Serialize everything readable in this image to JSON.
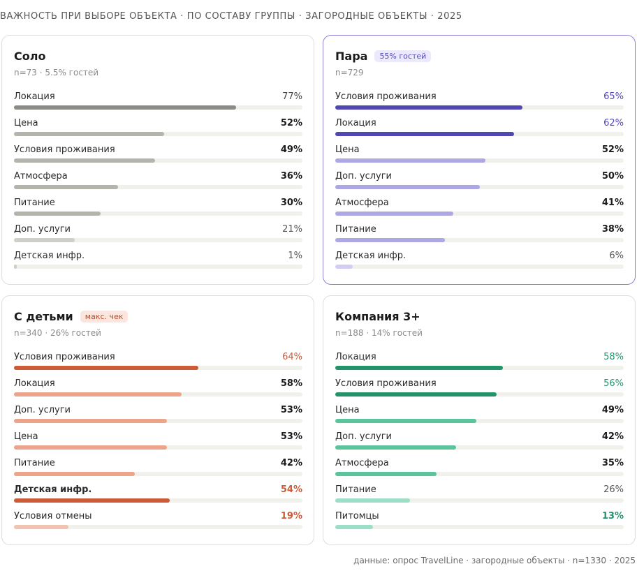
{
  "page_title": "ВАЖНОСТЬ ПРИ ВЫБОРЕ ОБЪЕКТА · ПО СОСТАВУ ГРУППЫ · ЗАГОРОДНЫЕ ОБЪЕКТЫ · 2025",
  "footer": "данные: опрос TravelLine · загородные объекты · n=1330 · 2025",
  "chart_data": [
    {
      "type": "bar",
      "title": "Соло",
      "badge": "",
      "subtitle": "n=73 · 5.5% гостей",
      "unit": "%",
      "xlim": [
        0,
        100
      ],
      "highlight": false,
      "rows": [
        {
          "label": "Локация",
          "value": 77,
          "fill_color": "#8b8b85",
          "value_color": "#444444",
          "value_bold": false,
          "label_bold": false
        },
        {
          "label": "Цена",
          "value": 52,
          "fill_color": "#b4b4ad",
          "value_color": "#1b1b1b",
          "value_bold": true,
          "label_bold": false
        },
        {
          "label": "Условия проживания",
          "value": 49,
          "fill_color": "#b4b4ad",
          "value_color": "#1b1b1b",
          "value_bold": true,
          "label_bold": false
        },
        {
          "label": "Атмосфера",
          "value": 36,
          "fill_color": "#b4b4ad",
          "value_color": "#1b1b1b",
          "value_bold": true,
          "label_bold": false
        },
        {
          "label": "Питание",
          "value": 30,
          "fill_color": "#b4b4ad",
          "value_color": "#1b1b1b",
          "value_bold": true,
          "label_bold": false
        },
        {
          "label": "Доп. услуги",
          "value": 21,
          "fill_color": "#cfcfc9",
          "value_color": "#555555",
          "value_bold": false,
          "label_bold": false
        },
        {
          "label": "Детская инфр.",
          "value": 1,
          "fill_color": "#cfcfc9",
          "value_color": "#555555",
          "value_bold": false,
          "label_bold": false
        }
      ]
    },
    {
      "type": "bar",
      "title": "Пара",
      "badge": "55% гостей",
      "badge_bg": "#ebe9fb",
      "badge_color": "#5650b8",
      "subtitle": "n=729",
      "unit": "%",
      "xlim": [
        0,
        100
      ],
      "highlight": true,
      "rows": [
        {
          "label": "Условия проживания",
          "value": 65,
          "fill_color": "#5147b3",
          "value_color": "#5147b3",
          "value_bold": false,
          "label_bold": false
        },
        {
          "label": "Локация",
          "value": 62,
          "fill_color": "#5147b3",
          "value_color": "#5147b3",
          "value_bold": false,
          "label_bold": false
        },
        {
          "label": "Цена",
          "value": 52,
          "fill_color": "#ada7e4",
          "value_color": "#1b1b1b",
          "value_bold": true,
          "label_bold": false
        },
        {
          "label": "Доп. услуги",
          "value": 50,
          "fill_color": "#ada7e4",
          "value_color": "#1b1b1b",
          "value_bold": true,
          "label_bold": false
        },
        {
          "label": "Атмосфера",
          "value": 41,
          "fill_color": "#ada7e4",
          "value_color": "#1b1b1b",
          "value_bold": true,
          "label_bold": false
        },
        {
          "label": "Питание",
          "value": 38,
          "fill_color": "#ada7e4",
          "value_color": "#1b1b1b",
          "value_bold": true,
          "label_bold": false
        },
        {
          "label": "Детская инфр.",
          "value": 6,
          "fill_color": "#d2cef3",
          "value_color": "#555555",
          "value_bold": false,
          "label_bold": false
        }
      ]
    },
    {
      "type": "bar",
      "title": "С детьми",
      "badge": "макс. чек",
      "badge_bg": "#fbe5dc",
      "badge_color": "#b5502f",
      "subtitle": "n=340 · 26% гостей",
      "unit": "%",
      "xlim": [
        0,
        100
      ],
      "highlight": false,
      "rows": [
        {
          "label": "Условия проживания",
          "value": 64,
          "fill_color": "#cc5b38",
          "value_color": "#cc5b38",
          "value_bold": false,
          "label_bold": false
        },
        {
          "label": "Локация",
          "value": 58,
          "fill_color": "#eca48a",
          "value_color": "#1b1b1b",
          "value_bold": true,
          "label_bold": false
        },
        {
          "label": "Доп. услуги",
          "value": 53,
          "fill_color": "#eca48a",
          "value_color": "#1b1b1b",
          "value_bold": true,
          "label_bold": false
        },
        {
          "label": "Цена",
          "value": 53,
          "fill_color": "#eca48a",
          "value_color": "#1b1b1b",
          "value_bold": true,
          "label_bold": false
        },
        {
          "label": "Питание",
          "value": 42,
          "fill_color": "#eca48a",
          "value_color": "#1b1b1b",
          "value_bold": true,
          "label_bold": false
        },
        {
          "label": "Детская инфр.",
          "value": 54,
          "fill_color": "#cc5b38",
          "value_color": "#cc5b38",
          "value_bold": true,
          "label_bold": true
        },
        {
          "label": "Условия отмены",
          "value": 19,
          "fill_color": "#f3c3b1",
          "value_color": "#cc5b38",
          "value_bold": true,
          "label_bold": false
        }
      ]
    },
    {
      "type": "bar",
      "title": "Компания 3+",
      "badge": "",
      "subtitle": "n=188 · 14% гостей",
      "unit": "%",
      "xlim": [
        0,
        100
      ],
      "highlight": false,
      "rows": [
        {
          "label": "Локация",
          "value": 58,
          "fill_color": "#23936a",
          "value_color": "#23936a",
          "value_bold": false,
          "label_bold": false
        },
        {
          "label": "Условия проживания",
          "value": 56,
          "fill_color": "#23936a",
          "value_color": "#23936a",
          "value_bold": false,
          "label_bold": false
        },
        {
          "label": "Цена",
          "value": 49,
          "fill_color": "#5cc49c",
          "value_color": "#1b1b1b",
          "value_bold": true,
          "label_bold": false
        },
        {
          "label": "Доп. услуги",
          "value": 42,
          "fill_color": "#5cc49c",
          "value_color": "#1b1b1b",
          "value_bold": true,
          "label_bold": false
        },
        {
          "label": "Атмосфера",
          "value": 35,
          "fill_color": "#5cc49c",
          "value_color": "#1b1b1b",
          "value_bold": true,
          "label_bold": false
        },
        {
          "label": "Питание",
          "value": 26,
          "fill_color": "#9ddfc6",
          "value_color": "#555555",
          "value_bold": false,
          "label_bold": false
        },
        {
          "label": "Питомцы",
          "value": 13,
          "fill_color": "#9ddfc6",
          "value_color": "#23936a",
          "value_bold": true,
          "label_bold": false
        }
      ]
    }
  ]
}
